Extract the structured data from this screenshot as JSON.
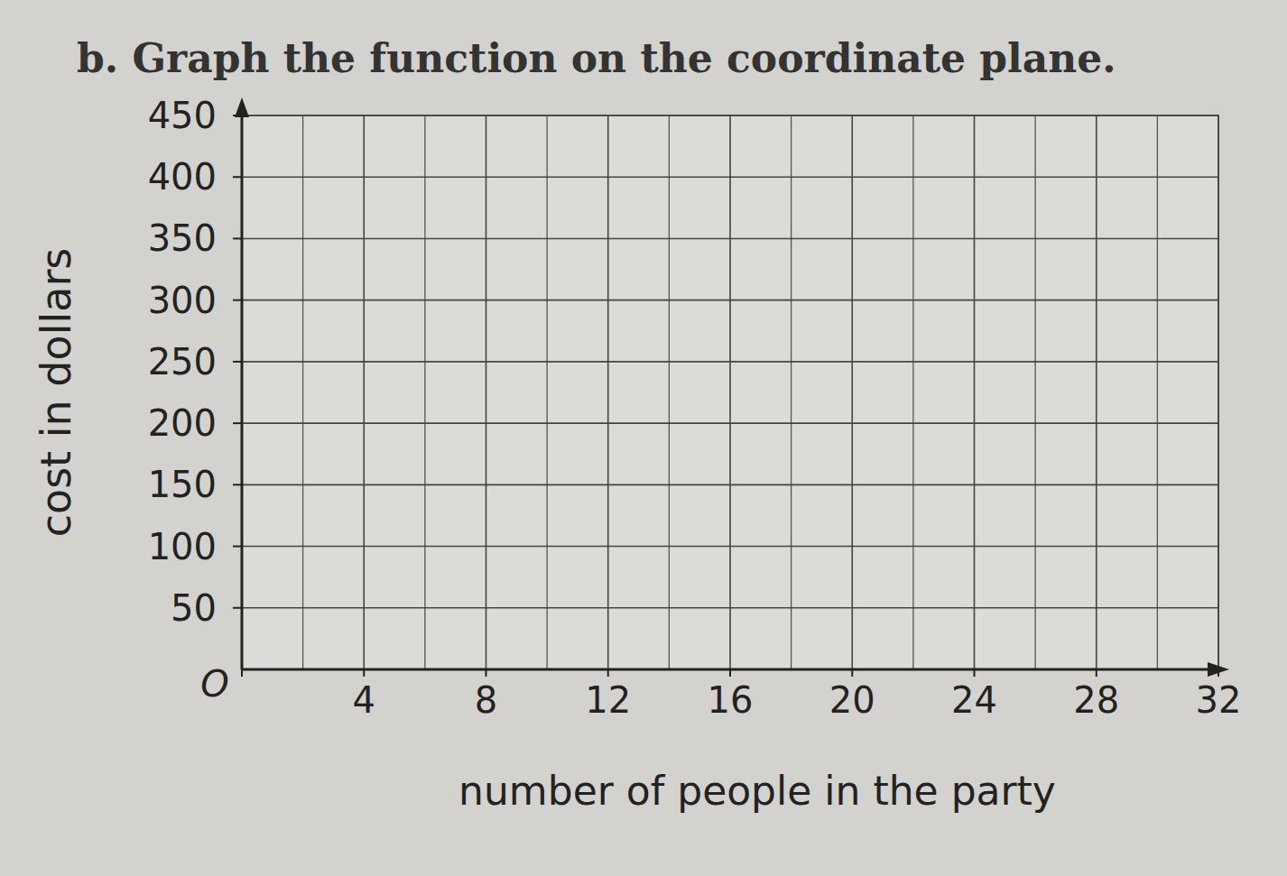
{
  "chart_data": {
    "type": "line",
    "title": "b. Graph the function on the coordinate plane.",
    "x_label": "number of people in the party",
    "y_label": "cost in dollars",
    "series": [],
    "xlim": [
      0,
      32
    ],
    "xticks": [
      {
        "value": 0,
        "label": "O"
      },
      4,
      8,
      12,
      16,
      20,
      24,
      28,
      32
    ],
    "ylim": [
      0,
      450
    ],
    "yticks": [
      50,
      100,
      150,
      200,
      250,
      300,
      350,
      400,
      450
    ],
    "grid": true
  }
}
